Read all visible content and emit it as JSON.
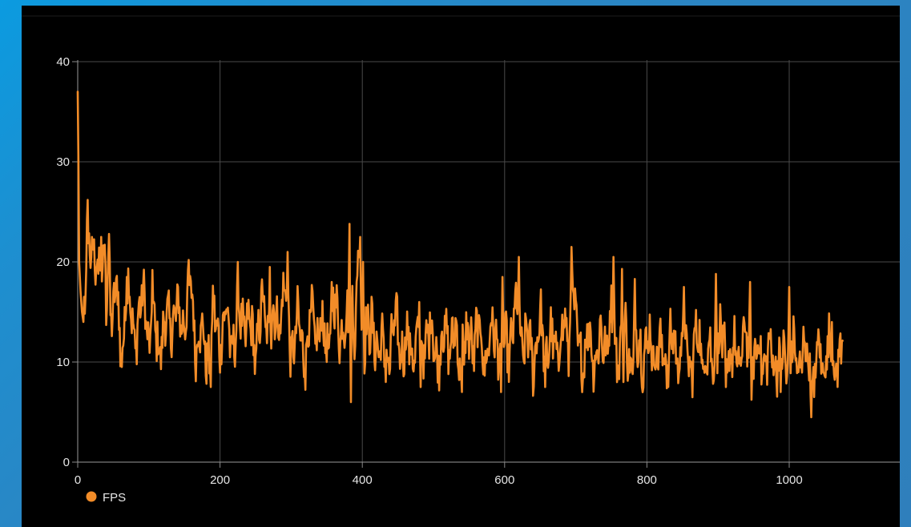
{
  "chart_data": {
    "type": "line",
    "title": "",
    "xlabel": "",
    "ylabel": "",
    "xlim": [
      0,
      1075
    ],
    "ylim": [
      0,
      40
    ],
    "x_ticks": [
      0,
      200,
      400,
      600,
      800,
      1000
    ],
    "y_ticks": [
      0,
      10,
      20,
      30,
      40
    ],
    "grid": true,
    "legend_position": "bottom-left",
    "series": [
      {
        "name": "FPS",
        "color": "#f28c28",
        "x_step": 1,
        "anchors": [
          [
            0,
            37.0
          ],
          [
            1,
            30.0
          ],
          [
            2,
            20.0
          ],
          [
            4,
            17.0
          ],
          [
            6,
            15.0
          ],
          [
            8,
            14.0
          ],
          [
            10,
            16.0
          ],
          [
            12,
            20.0
          ],
          [
            13,
            26.0
          ],
          [
            15,
            22.0
          ],
          [
            18,
            18.0
          ],
          [
            20,
            21.0
          ],
          [
            24,
            19.0
          ],
          [
            28,
            20.0
          ],
          [
            30,
            22.0
          ],
          [
            35,
            17.0
          ],
          [
            38,
            20.0
          ],
          [
            40,
            15.0
          ],
          [
            44,
            22.0
          ],
          [
            46,
            17.0
          ],
          [
            50,
            15.0
          ],
          [
            55,
            17.0
          ],
          [
            58,
            13.0
          ],
          [
            60,
            11.0
          ],
          [
            65,
            13.0
          ],
          [
            68,
            17.0
          ],
          [
            75,
            15.0
          ],
          [
            80,
            13.0
          ],
          [
            90,
            15.0
          ],
          [
            95,
            17.0
          ],
          [
            100,
            12.0
          ],
          [
            110,
            13.0
          ],
          [
            120,
            12.0
          ],
          [
            130,
            15.0
          ],
          [
            140,
            14.0
          ],
          [
            150,
            15.0
          ],
          [
            160,
            17.0
          ],
          [
            165,
            13.0
          ],
          [
            175,
            12.0
          ],
          [
            185,
            11.0
          ],
          [
            190,
            14.0
          ],
          [
            200,
            13.0
          ],
          [
            210,
            14.0
          ],
          [
            220,
            12.0
          ],
          [
            230,
            15.0
          ],
          [
            240,
            13.0
          ],
          [
            250,
            12.0
          ],
          [
            260,
            15.0
          ],
          [
            270,
            13.0
          ],
          [
            280,
            14.0
          ],
          [
            290,
            17.0
          ],
          [
            300,
            12.0
          ],
          [
            310,
            13.0
          ],
          [
            320,
            11.0
          ],
          [
            330,
            14.0
          ],
          [
            340,
            13.0
          ],
          [
            350,
            12.0
          ],
          [
            360,
            15.0
          ],
          [
            370,
            14.0
          ],
          [
            380,
            13.0
          ],
          [
            385,
            20.0
          ],
          [
            390,
            12.0
          ],
          [
            395,
            21.0
          ],
          [
            400,
            11.0
          ],
          [
            405,
            15.0
          ],
          [
            410,
            12.0
          ],
          [
            420,
            13.0
          ],
          [
            430,
            10.0
          ],
          [
            440,
            12.0
          ],
          [
            450,
            13.0
          ],
          [
            460,
            11.0
          ],
          [
            470,
            12.0
          ],
          [
            480,
            11.0
          ],
          [
            490,
            13.0
          ],
          [
            500,
            12.0
          ],
          [
            510,
            11.0
          ],
          [
            520,
            13.0
          ],
          [
            530,
            12.0
          ],
          [
            540,
            10.0
          ],
          [
            550,
            12.0
          ],
          [
            560,
            13.0
          ],
          [
            570,
            11.0
          ],
          [
            580,
            12.0
          ],
          [
            590,
            13.0
          ],
          [
            600,
            11.0
          ],
          [
            610,
            13.0
          ],
          [
            620,
            15.0
          ],
          [
            625,
            12.0
          ],
          [
            640,
            11.0
          ],
          [
            650,
            13.0
          ],
          [
            660,
            12.0
          ],
          [
            670,
            11.0
          ],
          [
            680,
            13.0
          ],
          [
            690,
            12.0
          ],
          [
            695,
            19.0
          ],
          [
            700,
            12.0
          ],
          [
            710,
            11.0
          ],
          [
            720,
            12.0
          ],
          [
            730,
            11.0
          ],
          [
            740,
            12.0
          ],
          [
            750,
            14.0
          ],
          [
            760,
            11.0
          ],
          [
            770,
            12.0
          ],
          [
            780,
            10.0
          ],
          [
            790,
            12.0
          ],
          [
            800,
            11.0
          ],
          [
            810,
            12.0
          ],
          [
            820,
            10.0
          ],
          [
            830,
            12.0
          ],
          [
            840,
            11.0
          ],
          [
            850,
            12.0
          ],
          [
            860,
            10.0
          ],
          [
            870,
            12.0
          ],
          [
            880,
            11.0
          ],
          [
            890,
            10.0
          ],
          [
            900,
            12.0
          ],
          [
            910,
            11.0
          ],
          [
            920,
            10.0
          ],
          [
            930,
            11.0
          ],
          [
            940,
            12.0
          ],
          [
            950,
            10.0
          ],
          [
            960,
            11.0
          ],
          [
            970,
            10.0
          ],
          [
            980,
            11.0
          ],
          [
            990,
            10.0
          ],
          [
            1000,
            11.0
          ],
          [
            1010,
            10.0
          ],
          [
            1020,
            11.0
          ],
          [
            1030,
            9.0
          ],
          [
            1040,
            10.0
          ],
          [
            1050,
            11.0
          ],
          [
            1060,
            10.0
          ],
          [
            1070,
            11.0
          ],
          [
            1075,
            10.0
          ]
        ],
        "spikes": [
          [
            14,
            26.2
          ],
          [
            20,
            22.5
          ],
          [
            33,
            22.5
          ],
          [
            44,
            22.8
          ],
          [
            69,
            18.5
          ],
          [
            105,
            19.2
          ],
          [
            156,
            20.2
          ],
          [
            225,
            20.0
          ],
          [
            270,
            19.5
          ],
          [
            295,
            21.0
          ],
          [
            357,
            18.0
          ],
          [
            382,
            23.8
          ],
          [
            397,
            22.5
          ],
          [
            401,
            20.0
          ],
          [
            480,
            16.0
          ],
          [
            541,
            17.5
          ],
          [
            597,
            18.5
          ],
          [
            620,
            20.5
          ],
          [
            694,
            21.5
          ],
          [
            753,
            20.5
          ],
          [
            765,
            19.3
          ],
          [
            783,
            18.3
          ],
          [
            852,
            17.5
          ],
          [
            897,
            18.8
          ],
          [
            945,
            18.0
          ],
          [
            1000,
            17.5
          ],
          [
            1060,
            14.0
          ]
        ],
        "dips": [
          [
            62,
            9.5
          ],
          [
            187,
            7.5
          ],
          [
            318,
            8.5
          ],
          [
            384,
            6.0
          ],
          [
            433,
            8.0
          ],
          [
            482,
            7.5
          ],
          [
            540,
            7.0
          ],
          [
            595,
            7.0
          ],
          [
            657,
            7.5
          ],
          [
            767,
            8.0
          ],
          [
            830,
            7.5
          ],
          [
            911,
            7.5
          ],
          [
            988,
            7.0
          ],
          [
            1035,
            6.5
          ],
          [
            1068,
            7.5
          ]
        ]
      }
    ]
  }
}
